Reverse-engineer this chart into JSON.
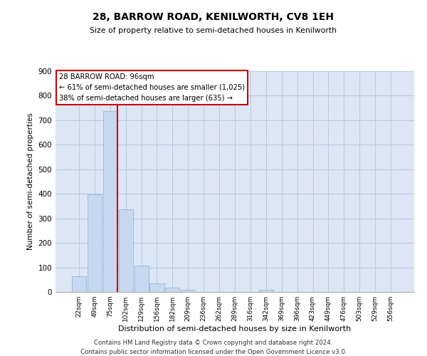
{
  "title": "28, BARROW ROAD, KENILWORTH, CV8 1EH",
  "subtitle": "Size of property relative to semi-detached houses in Kenilworth",
  "xlabel": "Distribution of semi-detached houses by size in Kenilworth",
  "ylabel": "Number of semi-detached properties",
  "bar_labels": [
    "22sqm",
    "49sqm",
    "75sqm",
    "102sqm",
    "129sqm",
    "156sqm",
    "182sqm",
    "209sqm",
    "236sqm",
    "262sqm",
    "289sqm",
    "316sqm",
    "342sqm",
    "369sqm",
    "396sqm",
    "423sqm",
    "449sqm",
    "476sqm",
    "503sqm",
    "529sqm",
    "556sqm"
  ],
  "bar_values": [
    63,
    397,
    737,
    337,
    107,
    34,
    17,
    8,
    0,
    0,
    0,
    0,
    8,
    0,
    0,
    0,
    0,
    0,
    0,
    0,
    0
  ],
  "bar_color": "#c7d9f0",
  "bar_edge_color": "#9ab5d5",
  "grid_color": "#b8c8dc",
  "bg_color": "#dce6f4",
  "property_line_color": "#cc0000",
  "annotation_title": "28 BARROW ROAD: 96sqm",
  "annotation_line1": "← 61% of semi-detached houses are smaller (1,025)",
  "annotation_line2": "38% of semi-detached houses are larger (635) →",
  "annotation_box_color": "#cc0000",
  "ylim": [
    0,
    900
  ],
  "yticks": [
    0,
    100,
    200,
    300,
    400,
    500,
    600,
    700,
    800,
    900
  ],
  "footer_line1": "Contains HM Land Registry data © Crown copyright and database right 2024.",
  "footer_line2": "Contains public sector information licensed under the Open Government Licence v3.0."
}
